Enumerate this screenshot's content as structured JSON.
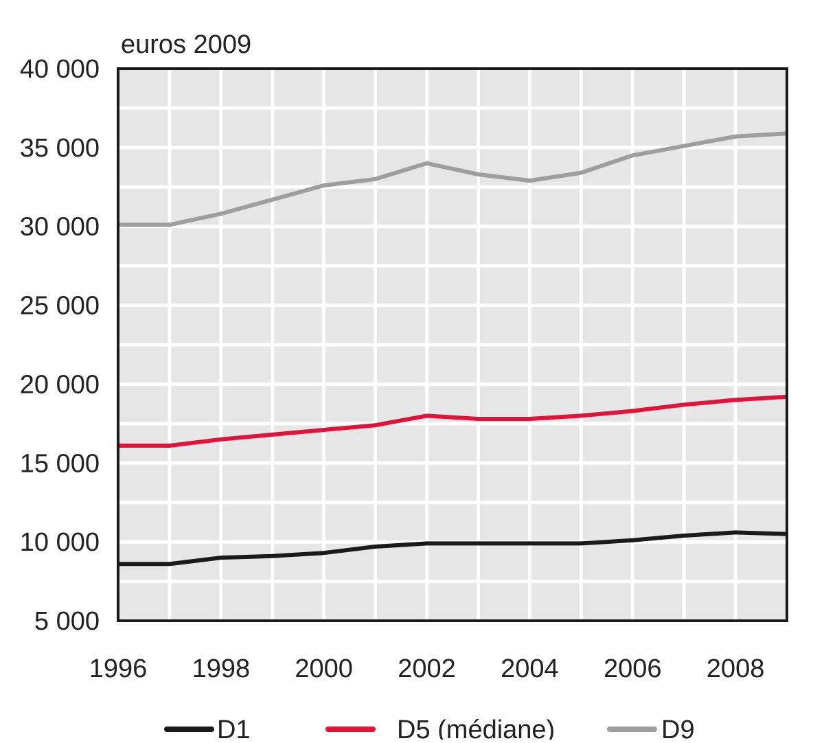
{
  "chart_data": {
    "type": "line",
    "title": "",
    "xlabel": "",
    "ylabel": "euros 2009",
    "x": [
      1996,
      1997,
      1998,
      1999,
      2000,
      2001,
      2002,
      2003,
      2004,
      2005,
      2006,
      2007,
      2008,
      2009
    ],
    "xlim": [
      1996,
      2009
    ],
    "ylim": [
      5000,
      40000
    ],
    "x_ticks": [
      1996,
      1998,
      2000,
      2002,
      2004,
      2006,
      2008
    ],
    "x_tick_labels": [
      "1996",
      "1998",
      "2000",
      "2002",
      "2004",
      "2006",
      "2008"
    ],
    "y_ticks": [
      5000,
      10000,
      15000,
      20000,
      25000,
      30000,
      35000,
      40000
    ],
    "y_tick_labels": [
      "5 000",
      "10 000",
      "15 000",
      "20 000",
      "25 000",
      "30 000",
      "35 000",
      "40 000"
    ],
    "grid": true,
    "background_color": "#e6e6e6",
    "grid_color": "#ffffff",
    "legend_position": "bottom",
    "series": [
      {
        "name": "D1",
        "color": "#1a1a1a",
        "values": [
          8600,
          8600,
          9000,
          9100,
          9300,
          9700,
          9900,
          9900,
          9900,
          9900,
          10100,
          10400,
          10600,
          10500
        ]
      },
      {
        "name": "D5 (médiane)",
        "color": "#e2123a",
        "values": [
          16100,
          16100,
          16500,
          16800,
          17100,
          17400,
          18000,
          17800,
          17800,
          18000,
          18300,
          18700,
          19000,
          19200
        ]
      },
      {
        "name": "D9",
        "color": "#9e9e9e",
        "values": [
          30100,
          30100,
          30800,
          31700,
          32600,
          33000,
          34000,
          33300,
          32900,
          33400,
          34500,
          35100,
          35700,
          35900
        ]
      }
    ]
  }
}
